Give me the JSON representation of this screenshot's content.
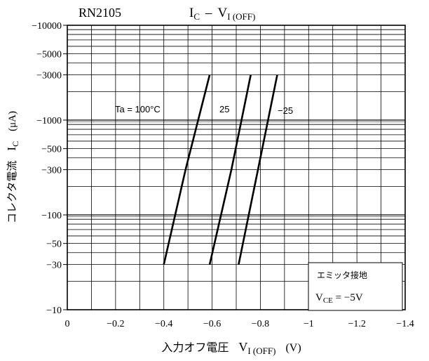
{
  "chart_data": {
    "type": "line",
    "device": "RN2105",
    "title": {
      "main": "I",
      "main_sub": "C",
      "dash": "–",
      "var": "V",
      "var_sub": "I (OFF)"
    },
    "x_axis": {
      "label_jp": "入力オフ電圧",
      "label_var": "V",
      "label_sub": "I (OFF)",
      "unit": "(V)",
      "range": [
        0,
        -1.4
      ],
      "ticks": [
        {
          "v": 0,
          "label": "0"
        },
        {
          "v": -0.2,
          "label": "−0.2"
        },
        {
          "v": -0.4,
          "label": "−0.4"
        },
        {
          "v": -0.6,
          "label": "−0.6"
        },
        {
          "v": -0.8,
          "label": "−0.8"
        },
        {
          "v": -1.0,
          "label": "−1"
        },
        {
          "v": -1.2,
          "label": "−1.2"
        },
        {
          "v": -1.4,
          "label": "−1.4"
        }
      ],
      "minor_step": 0.1
    },
    "y_axis": {
      "label_jp": "コレクタ電流",
      "label_var": "I",
      "label_sub": "C",
      "unit": "(μA)",
      "scale": "log",
      "range": [
        -10,
        -10000
      ],
      "ticks": [
        {
          "v": -10000,
          "label": "−10000"
        },
        {
          "v": -5000,
          "label": "−5000"
        },
        {
          "v": -3000,
          "label": "−3000"
        },
        {
          "v": -1000,
          "label": "−1000"
        },
        {
          "v": -500,
          "label": "−500"
        },
        {
          "v": -300,
          "label": "−300"
        },
        {
          "v": -100,
          "label": "−100"
        },
        {
          "v": -50,
          "label": "−50"
        },
        {
          "v": -30,
          "label": "−30"
        },
        {
          "v": -10,
          "label": "−10"
        }
      ]
    },
    "series": [
      {
        "name": "Ta = 100°C",
        "label": "Ta = 100°C",
        "points": [
          [
            -0.4,
            -30
          ],
          [
            -0.49,
            -300
          ],
          [
            -0.59,
            -3000
          ]
        ]
      },
      {
        "name": "25",
        "label": "25",
        "points": [
          [
            -0.59,
            -30
          ],
          [
            -0.68,
            -300
          ],
          [
            -0.76,
            -3000
          ]
        ]
      },
      {
        "name": "-25",
        "label": "−25",
        "points": [
          [
            -0.71,
            -30
          ],
          [
            -0.79,
            -300
          ],
          [
            -0.87,
            -3000
          ]
        ]
      }
    ],
    "conditions": {
      "line1": "エミッタ接地",
      "line2_var": "V",
      "line2_sub": "CE",
      "line2_rest": " = −5V"
    }
  }
}
